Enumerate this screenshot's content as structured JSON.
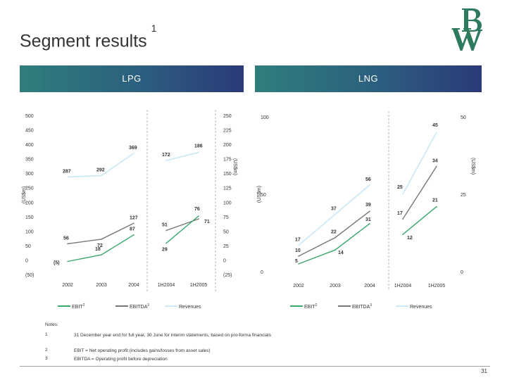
{
  "page": {
    "title": "Segment results",
    "title_sup": "1",
    "page_number": "31"
  },
  "colors": {
    "ebit": "#3aa76d",
    "ebitda": "#777777",
    "revenues": "#cfe9f7",
    "header_start": "#2f7f7c",
    "header_end": "#2b3a78",
    "logo": "#2e7a5c"
  },
  "panels": {
    "lpg_header": "LPG",
    "lng_header": "LNG"
  },
  "notes": {
    "label": "Notes:",
    "items": [
      {
        "num": "1",
        "text": "31 December year end for full year, 30 June for interim statements, based on pro-forma financials"
      },
      {
        "num": "2",
        "text": "EBIT = Net operating profit (includes gains/losses from asset sales)"
      },
      {
        "num": "3",
        "text": "EBITDA = Operating profit before depreciation"
      }
    ]
  },
  "chart_data": [
    {
      "type": "line",
      "panel": "LPG",
      "categories": [
        "2002",
        "2003",
        "2004",
        "1H2004",
        "1H2005"
      ],
      "left_axis": {
        "label": "(US$m)",
        "ticks": [
          "500",
          "450",
          "400",
          "350",
          "300",
          "250",
          "200",
          "150",
          "100",
          "50",
          "0",
          "(50)"
        ],
        "ylim": [
          -50,
          500
        ]
      },
      "right_axis": {
        "label": "(US$m)",
        "ticks": [
          "250",
          "225",
          "200",
          "175",
          "150",
          "125",
          "100",
          "75",
          "50",
          "25",
          "0",
          "(25)"
        ],
        "ylim": [
          -25,
          250
        ]
      },
      "series": [
        {
          "name": "Revenues",
          "key": "revenues",
          "full_year": {
            "values": [
              287,
              292,
              369
            ],
            "labels": [
              "287",
              "292",
              "369"
            ]
          },
          "half_year": {
            "values": [
              172,
              186
            ],
            "labels": [
              "172",
              "186"
            ]
          }
        },
        {
          "name": "EBITDA",
          "key": "ebitda",
          "sup": "3",
          "full_year": {
            "values": [
              56,
              72,
              127
            ],
            "labels": [
              "56",
              "72",
              "127"
            ]
          },
          "half_year": {
            "values": [
              51,
              71
            ],
            "labels": [
              "51",
              "71"
            ]
          }
        },
        {
          "name": "EBIT",
          "key": "ebit",
          "sup": "2",
          "full_year": {
            "values": [
              -5,
              18,
              87
            ],
            "labels": [
              "(5)",
              "18",
              "87"
            ]
          },
          "half_year": {
            "values": [
              29,
              76
            ],
            "labels": [
              "29",
              "76"
            ]
          }
        }
      ]
    },
    {
      "type": "line",
      "panel": "LNG",
      "categories": [
        "2002",
        "2003",
        "2004",
        "1H2004",
        "1H2005"
      ],
      "left_axis": {
        "label": "(US$m)",
        "ticks": [
          "100",
          "50",
          "0"
        ],
        "ylim": [
          0,
          100
        ]
      },
      "right_axis": {
        "label": "(US$m)",
        "ticks": [
          "50",
          "25",
          "0"
        ],
        "ylim": [
          0,
          50
        ]
      },
      "series": [
        {
          "name": "Revenues",
          "key": "revenues",
          "full_year": {
            "values": [
              17,
              37,
              56
            ],
            "labels": [
              "17",
              "37",
              "56"
            ]
          },
          "half_year": {
            "values": [
              25,
              45
            ],
            "labels": [
              "25",
              "45"
            ]
          }
        },
        {
          "name": "EBITDA",
          "key": "ebitda",
          "sup": "3",
          "full_year": {
            "values": [
              10,
              22,
              39
            ],
            "labels": [
              "10",
              "22",
              "39"
            ]
          },
          "half_year": {
            "values": [
              17,
              34
            ],
            "labels": [
              "17",
              "34"
            ]
          }
        },
        {
          "name": "EBIT",
          "key": "ebit",
          "sup": "2",
          "full_year": {
            "values": [
              5,
              14,
              31
            ],
            "labels": [
              "5",
              "14",
              "31"
            ]
          },
          "half_year": {
            "values": [
              12,
              21
            ],
            "labels": [
              "12",
              "21"
            ]
          }
        }
      ]
    }
  ]
}
